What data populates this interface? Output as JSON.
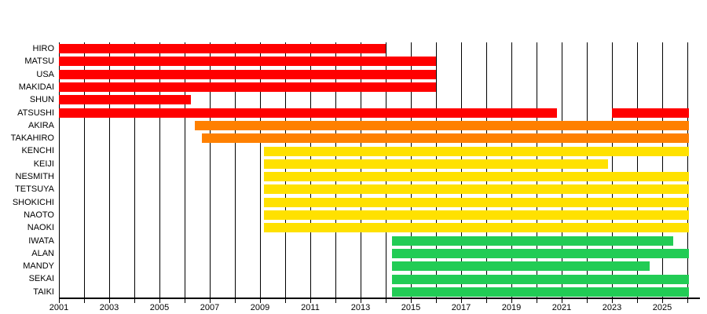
{
  "chart_data": {
    "type": "bar",
    "variant": "timeline_gantt",
    "title": "",
    "xlabel": "",
    "ylabel": "",
    "legend": "none",
    "grid": true,
    "axis": {
      "x_min": 2001,
      "x_max": 2026,
      "gridline_interval_years": 1,
      "tick_interval_years": 1,
      "label_years": [
        2001,
        2003,
        2005,
        2007,
        2009,
        2011,
        2013,
        2015,
        2017,
        2019,
        2021,
        2023,
        2025
      ],
      "present": 2026.05
    },
    "colors": {
      "founding_2001": "#FF0000",
      "joined_2006": "#FF8000",
      "joined_2009": "#FFE100",
      "joined_2014": "#22CC55",
      "gridline": "#000000",
      "axis": "#000000",
      "background": "#FFFFFF",
      "text": "#000000"
    },
    "members": [
      {
        "name": "HIRO",
        "group": "founding_2001",
        "segments": [
          [
            2001,
            2014
          ]
        ]
      },
      {
        "name": "MATSU",
        "group": "founding_2001",
        "segments": [
          [
            2001,
            2016
          ]
        ]
      },
      {
        "name": "USA",
        "group": "founding_2001",
        "segments": [
          [
            2001,
            2016
          ]
        ]
      },
      {
        "name": "MAKIDAI",
        "group": "founding_2001",
        "segments": [
          [
            2001,
            2016
          ]
        ]
      },
      {
        "name": "SHUN",
        "group": "founding_2001",
        "segments": [
          [
            2001,
            2006.25
          ]
        ]
      },
      {
        "name": "ATSUSHI",
        "group": "founding_2001",
        "segments": [
          [
            2001,
            2020.8
          ],
          [
            2023,
            null
          ]
        ]
      },
      {
        "name": "AKIRA",
        "group": "joined_2006",
        "segments": [
          [
            2006.4,
            null
          ]
        ]
      },
      {
        "name": "TAKAHIRO",
        "group": "joined_2006",
        "segments": [
          [
            2006.7,
            null
          ]
        ]
      },
      {
        "name": "KENCHI",
        "group": "joined_2009",
        "segments": [
          [
            2009.17,
            null
          ]
        ]
      },
      {
        "name": "KEIJI",
        "group": "joined_2009",
        "segments": [
          [
            2009.17,
            2022.85
          ]
        ]
      },
      {
        "name": "NESMITH",
        "group": "joined_2009",
        "segments": [
          [
            2009.17,
            null
          ]
        ]
      },
      {
        "name": "TETSUYA",
        "group": "joined_2009",
        "segments": [
          [
            2009.17,
            null
          ]
        ]
      },
      {
        "name": "SHOKICHI",
        "group": "joined_2009",
        "segments": [
          [
            2009.17,
            null
          ]
        ]
      },
      {
        "name": "NAOTO",
        "group": "joined_2009",
        "segments": [
          [
            2009.17,
            null
          ]
        ]
      },
      {
        "name": "NAOKI",
        "group": "joined_2009",
        "segments": [
          [
            2009.17,
            null
          ]
        ]
      },
      {
        "name": "IWATA",
        "group": "joined_2014",
        "segments": [
          [
            2014.25,
            2025.45
          ]
        ]
      },
      {
        "name": "ALAN",
        "group": "joined_2014",
        "segments": [
          [
            2014.25,
            null
          ]
        ]
      },
      {
        "name": "MANDY",
        "group": "joined_2014",
        "segments": [
          [
            2014.25,
            2024.5
          ]
        ]
      },
      {
        "name": "SEKAI",
        "group": "joined_2014",
        "segments": [
          [
            2014.25,
            null
          ]
        ]
      },
      {
        "name": "TAIKI",
        "group": "joined_2014",
        "segments": [
          [
            2014.25,
            null
          ]
        ]
      }
    ]
  }
}
